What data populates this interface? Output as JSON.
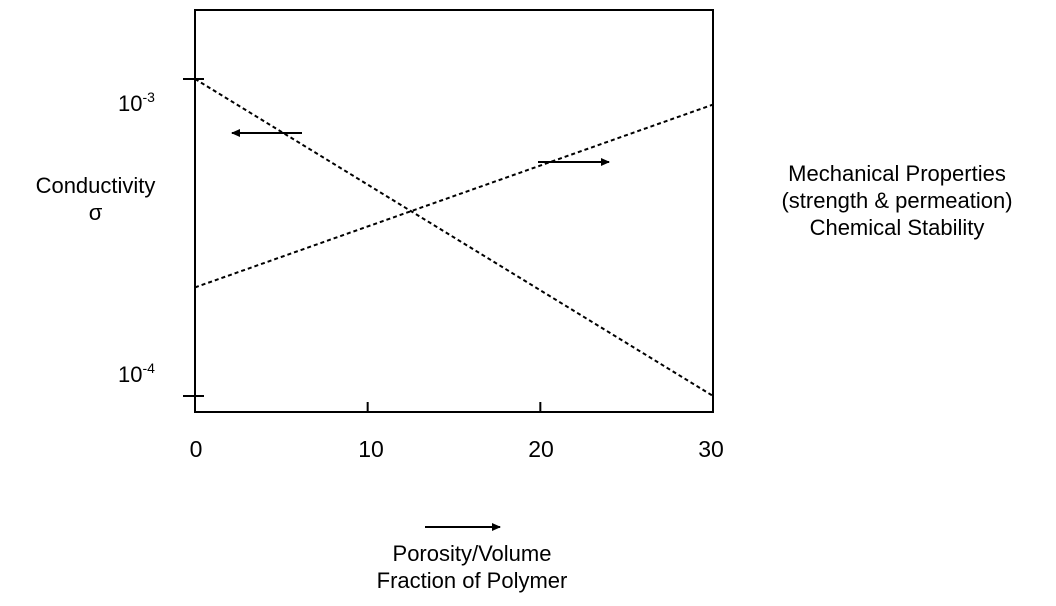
{
  "chart_data": {
    "type": "line",
    "title": "",
    "xlabel": "Porosity / Volume Fraction of Polymer",
    "xlabel_lines": [
      "Porosity/Volume",
      "Fraction of Polymer"
    ],
    "ylabel_left_lines": [
      "Conductivity",
      "σ"
    ],
    "ylabel_right_lines": [
      "Mechanical Properties",
      "(strength & permeation)",
      "Chemical Stability"
    ],
    "x_ticks": [
      "0",
      "10",
      "20",
      "30"
    ],
    "y_ticks": [
      {
        "base": "10",
        "exp": "-3",
        "value": 0.001
      },
      {
        "base": "10",
        "exp": "-4",
        "value": 0.0001
      }
    ],
    "xlim": [
      0,
      30
    ],
    "y_scale": "log",
    "ylim": [
      8.9e-05,
      0.00165
    ],
    "line_style": "dashed",
    "grid": false,
    "series": [
      {
        "axis": "left",
        "x": [
          0,
          30
        ],
        "y": [
          0.001,
          0.0001
        ]
      },
      {
        "axis": "right",
        "x": [
          0,
          30
        ],
        "y": [
          0.00022,
          0.00083
        ]
      }
    ],
    "annotations": [
      {
        "type": "arrow",
        "direction": "left",
        "meaning": "left axis (conductivity) applies to falling line"
      },
      {
        "type": "arrow",
        "direction": "right",
        "meaning": "right axis (mechanical properties) applies to rising line"
      },
      {
        "type": "arrow",
        "direction": "right",
        "meaning": "increasing porosity / volume fraction of polymer"
      }
    ]
  },
  "colors": {
    "line": "#000000",
    "background": "#ffffff"
  }
}
